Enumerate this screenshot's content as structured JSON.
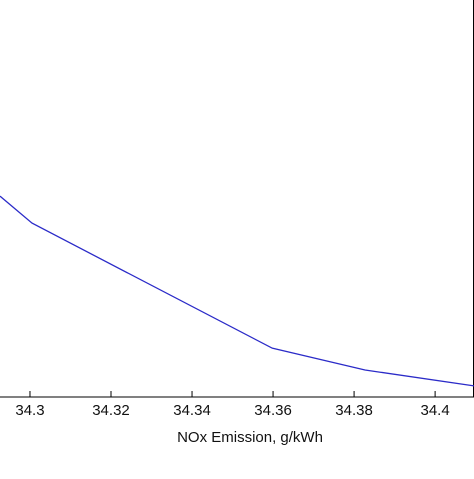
{
  "chart_data": {
    "type": "line",
    "x_label": "NOx Emission, g/kWh",
    "x": [
      34.2926,
      34.3005,
      34.3598,
      34.3827,
      34.4096
    ],
    "series": [
      {
        "color": "#2b2bc8",
        "values": [
          50.6,
          43.8,
          12.3,
          6.8,
          2.8
        ]
      }
    ],
    "xlim": [
      34.2926,
      34.4096
    ],
    "xticks": [
      34.3,
      34.32,
      34.34,
      34.36,
      34.38,
      34.4
    ],
    "ylim": [
      0,
      100
    ]
  }
}
